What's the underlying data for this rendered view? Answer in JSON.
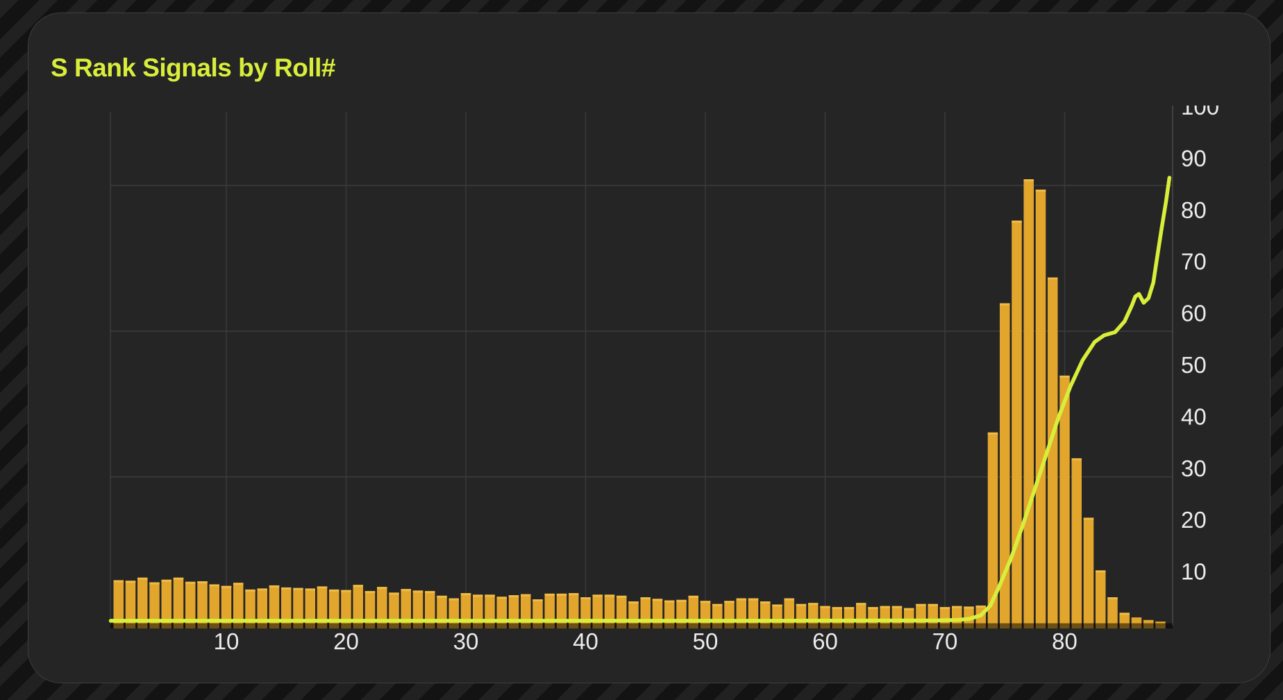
{
  "panel": {
    "title": "S Rank Signals by Roll#"
  },
  "colors": {
    "page_background": "#131313",
    "page_stripe": "#212121",
    "panel_background": "#252525",
    "panel_border": "#3e3e3e",
    "title_text": "#d9ee3b",
    "gridline": "#3b3b3b",
    "axis_line": "#454545",
    "tick_label": "#ececec",
    "bar_fill": "#e2a62d",
    "bar_cap": "#f2c14c",
    "line_stroke": "#d9ee3b",
    "baseline_shade": "rgba(0,0,0,0.52)"
  },
  "chart_data": {
    "type": "bar",
    "title": "S Rank Signals by Roll#",
    "xlabel": "Roll#",
    "ylabel": "",
    "x_ticks": [
      10,
      20,
      30,
      40,
      50,
      60,
      70,
      80
    ],
    "y_ticks_right": [
      10,
      20,
      30,
      40,
      50,
      60,
      70,
      80,
      90,
      100
    ],
    "x_range": [
      0.35,
      89
    ],
    "y_range_right": [
      0,
      100
    ],
    "grid": "on",
    "legend": "none",
    "horizontal_gridline_values": [
      28.4,
      56.6,
      84.8
    ],
    "series": [
      {
        "name": "s-rank-signals-per-roll",
        "type": "bar",
        "first_roll": 1,
        "values": [
          8.4,
          8.3,
          8.9,
          8.0,
          8.5,
          8.9,
          8.1,
          8.2,
          7.6,
          7.3,
          7.9,
          6.6,
          6.8,
          7.4,
          7.0,
          6.9,
          6.8,
          7.2,
          6.6,
          6.5,
          7.5,
          6.3,
          7.1,
          6.0,
          6.7,
          6.4,
          6.3,
          5.4,
          4.9,
          5.9,
          5.6,
          5.6,
          5.2,
          5.5,
          5.7,
          4.7,
          5.8,
          5.8,
          5.9,
          5.1,
          5.6,
          5.6,
          5.4,
          4.3,
          5.1,
          4.8,
          4.5,
          4.6,
          5.4,
          4.4,
          3.8,
          4.4,
          4.9,
          4.9,
          4.3,
          3.7,
          4.9,
          3.8,
          4.0,
          3.4,
          3.2,
          3.2,
          4.0,
          3.2,
          3.4,
          3.4,
          3.0,
          3.8,
          3.8,
          3.2,
          3.4,
          3.3,
          3.5,
          37,
          62,
          78,
          86,
          84,
          67,
          48,
          32,
          20.5,
          10.3,
          5.1,
          2.1,
          1.2,
          0.7,
          0.4
        ]
      },
      {
        "name": "trend-line",
        "type": "line",
        "points": [
          [
            0.35,
            0.55
          ],
          [
            20,
            0.55
          ],
          [
            40,
            0.55
          ],
          [
            55,
            0.55
          ],
          [
            65,
            0.6
          ],
          [
            69,
            0.6
          ],
          [
            71,
            0.7
          ],
          [
            72,
            0.9
          ],
          [
            73,
            1.6
          ],
          [
            73.8,
            3.5
          ],
          [
            74.5,
            7
          ],
          [
            75.5,
            12.5
          ],
          [
            76.5,
            19
          ],
          [
            77.5,
            26
          ],
          [
            78.5,
            33
          ],
          [
            79.5,
            40
          ],
          [
            80.5,
            46
          ],
          [
            81.5,
            51
          ],
          [
            82.5,
            54.5
          ],
          [
            83.3,
            55.8
          ],
          [
            84.2,
            56.4
          ],
          [
            85.0,
            58.5
          ],
          [
            85.6,
            61.5
          ],
          [
            85.9,
            63.3
          ],
          [
            86.2,
            63.8
          ],
          [
            86.6,
            62.1
          ],
          [
            87.0,
            63.0
          ],
          [
            87.4,
            66
          ],
          [
            87.8,
            72
          ],
          [
            88.1,
            76.5
          ],
          [
            88.45,
            81.5
          ],
          [
            88.75,
            86.3
          ]
        ]
      }
    ]
  }
}
